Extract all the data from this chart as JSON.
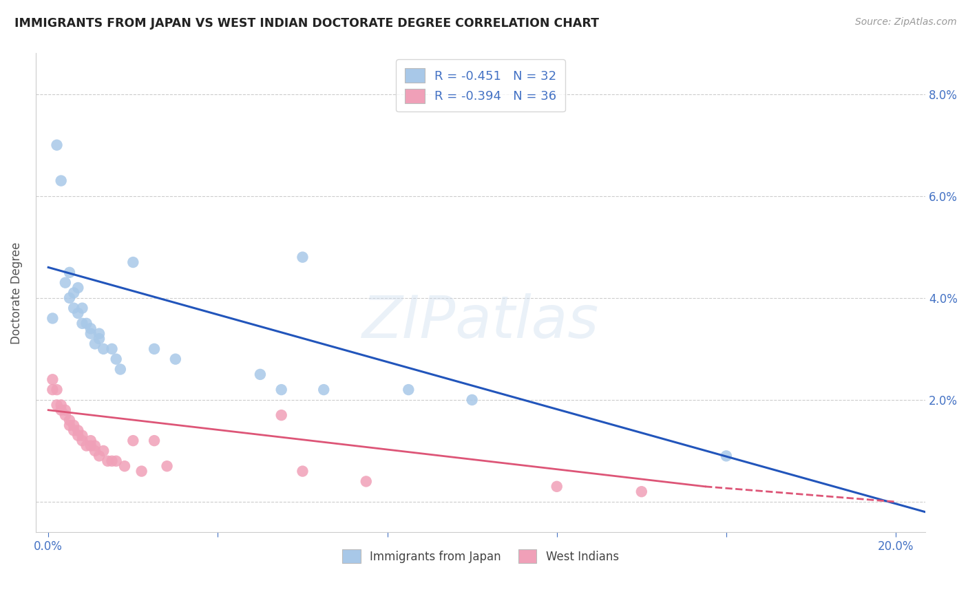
{
  "title": "IMMIGRANTS FROM JAPAN VS WEST INDIAN DOCTORATE DEGREE CORRELATION CHART",
  "source": "Source: ZipAtlas.com",
  "ylabel_label": "Doctorate Degree",
  "xlim": [
    -0.003,
    0.207
  ],
  "ylim": [
    -0.006,
    0.088
  ],
  "legend_R1": "-0.451",
  "legend_N1": "32",
  "legend_R2": "-0.394",
  "legend_N2": "36",
  "color_japan": "#a8c8e8",
  "color_westindian": "#f0a0b8",
  "color_japan_line": "#2255bb",
  "color_westindian_line": "#dd5577",
  "color_text_blue": "#4472c4",
  "watermark": "ZIPatlas",
  "japan_x": [
    0.001,
    0.002,
    0.003,
    0.004,
    0.005,
    0.005,
    0.006,
    0.006,
    0.007,
    0.007,
    0.008,
    0.008,
    0.009,
    0.01,
    0.01,
    0.011,
    0.012,
    0.012,
    0.013,
    0.015,
    0.016,
    0.017,
    0.02,
    0.025,
    0.03,
    0.05,
    0.055,
    0.06,
    0.065,
    0.085,
    0.1,
    0.16
  ],
  "japan_y": [
    0.036,
    0.07,
    0.063,
    0.043,
    0.045,
    0.04,
    0.041,
    0.038,
    0.042,
    0.037,
    0.038,
    0.035,
    0.035,
    0.033,
    0.034,
    0.031,
    0.032,
    0.033,
    0.03,
    0.03,
    0.028,
    0.026,
    0.047,
    0.03,
    0.028,
    0.025,
    0.022,
    0.048,
    0.022,
    0.022,
    0.02,
    0.009
  ],
  "westindian_x": [
    0.001,
    0.001,
    0.002,
    0.002,
    0.003,
    0.003,
    0.004,
    0.004,
    0.005,
    0.005,
    0.006,
    0.006,
    0.007,
    0.007,
    0.008,
    0.008,
    0.009,
    0.01,
    0.01,
    0.011,
    0.011,
    0.012,
    0.013,
    0.014,
    0.015,
    0.016,
    0.018,
    0.02,
    0.022,
    0.025,
    0.028,
    0.055,
    0.06,
    0.075,
    0.12,
    0.14
  ],
  "westindian_y": [
    0.024,
    0.022,
    0.019,
    0.022,
    0.019,
    0.018,
    0.017,
    0.018,
    0.016,
    0.015,
    0.014,
    0.015,
    0.014,
    0.013,
    0.013,
    0.012,
    0.011,
    0.011,
    0.012,
    0.01,
    0.011,
    0.009,
    0.01,
    0.008,
    0.008,
    0.008,
    0.007,
    0.012,
    0.006,
    0.012,
    0.007,
    0.017,
    0.006,
    0.004,
    0.003,
    0.002
  ],
  "background_color": "#ffffff",
  "grid_color": "#cccccc",
  "xtick_positions": [
    0.0,
    0.04,
    0.08,
    0.12,
    0.16,
    0.2
  ],
  "xtick_labels": [
    "0.0%",
    "",
    "",
    "",
    "",
    "20.0%"
  ],
  "ytick_positions": [
    0.0,
    0.02,
    0.04,
    0.06,
    0.08
  ],
  "ytick_labels_right": [
    "",
    "2.0%",
    "4.0%",
    "6.0%",
    "8.0%"
  ],
  "japan_line_x0": 0.0,
  "japan_line_y0": 0.046,
  "japan_line_x1": 0.207,
  "japan_line_y1": -0.002,
  "west_line_x0": 0.0,
  "west_line_y0": 0.018,
  "west_line_x1": 0.155,
  "west_line_y1": 0.003
}
